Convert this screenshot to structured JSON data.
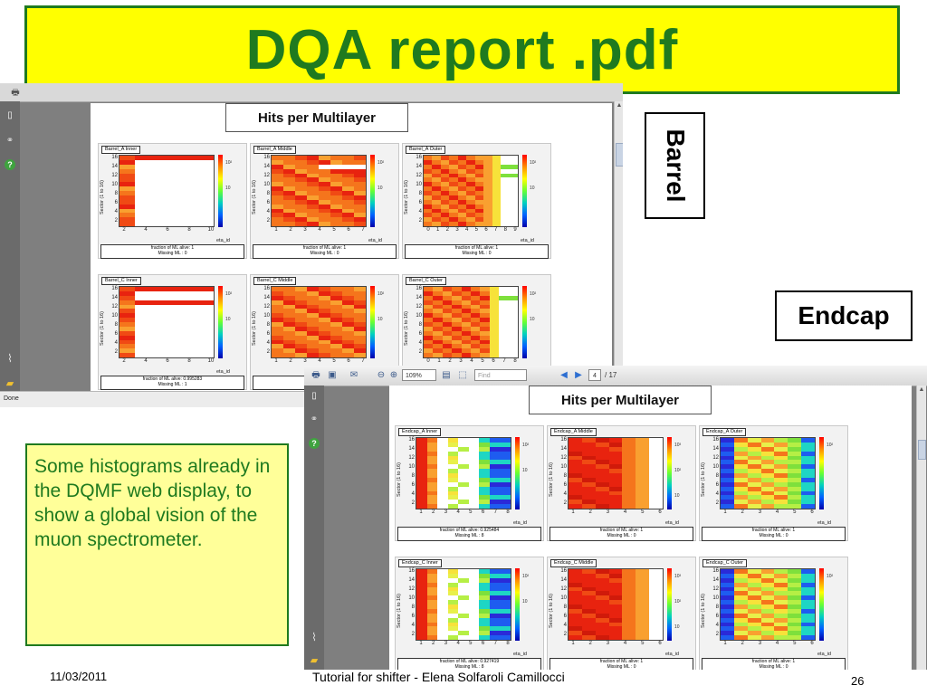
{
  "slide": {
    "title": "DQA report .pdf",
    "barrel_label": "Barrel",
    "endcap_label": "Endcap",
    "note": "Some histograms already in the DQMF web display,  to show a global vision of the muon spectrometer.",
    "footer": {
      "date": "11/03/2011",
      "center": "Tutorial for shifter - Elena Solfaroli Camillocci",
      "page": "26"
    }
  },
  "viewer1": {
    "heading": "Hits per Multilayer",
    "status": "Done",
    "side_icons": [
      "page-icon",
      "binoculars-icon",
      "help-icon",
      "paperclip-icon",
      "comment-icon"
    ],
    "panels": [
      {
        "name": "barrel-a-inner",
        "label": "Barrel_A Inner",
        "ylabel": "Sector (1 to 16)",
        "xlabel": "eta_id",
        "yticks": [
          "16",
          "14",
          "12",
          "10",
          "8",
          "6",
          "4",
          "2"
        ],
        "xticks": [
          "2",
          "4",
          "6",
          "8",
          "10"
        ],
        "colorbar": [
          "10²",
          "10"
        ],
        "stats": [
          "fraction of ML alive: 1",
          "Missing ML : 0"
        ]
      },
      {
        "name": "barrel-a-middle",
        "label": "Barrel_A Middle",
        "ylabel": "Sector (1 to 16)",
        "xlabel": "eta_id",
        "yticks": [
          "16",
          "14",
          "12",
          "10",
          "8",
          "6",
          "4",
          "2"
        ],
        "xticks": [
          "1",
          "2",
          "3",
          "4",
          "5",
          "6",
          "7"
        ],
        "colorbar": [
          "10²",
          "10"
        ],
        "stats": [
          "fraction of ML alive: 1",
          "Missing ML : 0"
        ]
      },
      {
        "name": "barrel-a-outer",
        "label": "Barrel_A Outer",
        "ylabel": "Sector (1 to 16)",
        "xlabel": "eta_id",
        "yticks": [
          "16",
          "14",
          "12",
          "10",
          "8",
          "6",
          "4",
          "2"
        ],
        "xticks": [
          "0",
          "1",
          "2",
          "3",
          "4",
          "5",
          "6",
          "7",
          "8",
          "9"
        ],
        "colorbar": [
          "10²",
          "10"
        ],
        "stats": [
          "fraction of ML alive: 1",
          "Missing ML : 0"
        ]
      },
      {
        "name": "barrel-c-inner",
        "label": "Barrel_C Inner",
        "ylabel": "Sector (1 to 16)",
        "xlabel": "eta_id",
        "yticks": [
          "16",
          "14",
          "12",
          "10",
          "8",
          "6",
          "4",
          "2"
        ],
        "xticks": [
          "2",
          "4",
          "6",
          "8",
          "10"
        ],
        "colorbar": [
          "10²",
          "10"
        ],
        "stats": [
          "fraction of ML alive: 0.995283",
          "Missing ML : 1"
        ]
      },
      {
        "name": "barrel-c-middle",
        "label": "Barrel_C Middle",
        "ylabel": "Sector (1 to 16)",
        "xlabel": "eta_id",
        "yticks": [
          "16",
          "14",
          "12",
          "10",
          "8",
          "6",
          "4",
          "2"
        ],
        "xticks": [
          "1",
          "2",
          "3",
          "4",
          "5",
          "6",
          "7"
        ],
        "colorbar": [
          "10²",
          "10"
        ],
        "stats": [
          "",
          ""
        ]
      },
      {
        "name": "barrel-c-outer",
        "label": "Barrel_C Outer",
        "ylabel": "Sector (1 to 16)",
        "xlabel": "eta_id",
        "yticks": [
          "16",
          "14",
          "12",
          "10",
          "8",
          "6",
          "4",
          "2"
        ],
        "xticks": [
          "0",
          "1",
          "2",
          "3",
          "4",
          "5",
          "6",
          "7",
          "8"
        ],
        "colorbar": [
          "10²",
          "10"
        ],
        "stats": [
          "",
          ""
        ]
      }
    ]
  },
  "viewer2": {
    "heading": "Hits per Multilayer",
    "toolbar": {
      "zoom": "109%",
      "find_placeholder": "Find",
      "page_current": "4",
      "page_total": "/ 17"
    },
    "side_icons": [
      "page-icon",
      "binoculars-icon",
      "help-icon",
      "paperclip-icon",
      "comment-icon"
    ],
    "panels": [
      {
        "name": "endcap-a-inner",
        "label": "Endcap_A Inner",
        "ylabel": "Sector (1 to 16)",
        "xlabel": "eta_id",
        "yticks": [
          "16",
          "14",
          "12",
          "10",
          "8",
          "6",
          "4",
          "2"
        ],
        "xticks": [
          "1",
          "2",
          "3",
          "4",
          "5",
          "6",
          "7",
          "8"
        ],
        "colorbar": [
          "10²",
          "10"
        ],
        "stats": [
          "fraction of ML alive: 0.925484",
          "Missing ML : 8"
        ]
      },
      {
        "name": "endcap-a-middle",
        "label": "Endcap_A Middle",
        "ylabel": "Sector (1 to 16)",
        "xlabel": "eta_id",
        "yticks": [
          "16",
          "14",
          "12",
          "10",
          "8",
          "6",
          "4",
          "2"
        ],
        "xticks": [
          "1",
          "2",
          "3",
          "4",
          "5",
          "6"
        ],
        "colorbar": [
          "10³",
          "10²",
          "10"
        ],
        "stats": [
          "fraction of ML alive: 1",
          "Missing ML : 0"
        ]
      },
      {
        "name": "endcap-a-outer",
        "label": "Endcap_A Outer",
        "ylabel": "Sector (1 to 16)",
        "xlabel": "eta_id",
        "yticks": [
          "16",
          "14",
          "12",
          "10",
          "8",
          "6",
          "4",
          "2"
        ],
        "xticks": [
          "1",
          "2",
          "3",
          "4",
          "5",
          "6"
        ],
        "colorbar": [
          "10²"
        ],
        "stats": [
          "fraction of ML alive: 1",
          "Missing ML : 0"
        ]
      },
      {
        "name": "endcap-c-inner",
        "label": "Endcap_C Inner",
        "ylabel": "Sector (1 to 16)",
        "xlabel": "eta_id",
        "yticks": [
          "16",
          "14",
          "12",
          "10",
          "8",
          "6",
          "4",
          "2"
        ],
        "xticks": [
          "1",
          "2",
          "3",
          "4",
          "5",
          "6",
          "7",
          "8"
        ],
        "colorbar": [
          "10²",
          "10"
        ],
        "stats": [
          "fraction of ML alive: 0.927419",
          "Missing ML : 8"
        ]
      },
      {
        "name": "endcap-c-middle",
        "label": "Endcap_C Middle",
        "ylabel": "Sector (1 to 16)",
        "xlabel": "eta_id",
        "yticks": [
          "16",
          "14",
          "12",
          "10",
          "8",
          "6",
          "4",
          "2"
        ],
        "xticks": [
          "1",
          "2",
          "3",
          "4",
          "5",
          "6"
        ],
        "colorbar": [
          "10³",
          "10²",
          "10"
        ],
        "stats": [
          "fraction of ML alive: 1",
          "Missing ML : 0"
        ]
      },
      {
        "name": "endcap-c-outer",
        "label": "Endcap_C Outer",
        "ylabel": "Sector (1 to 16)",
        "xlabel": "eta_id",
        "yticks": [
          "16",
          "14",
          "12",
          "10",
          "8",
          "6",
          "4",
          "2"
        ],
        "xticks": [
          "1",
          "2",
          "3",
          "4",
          "5",
          "6"
        ],
        "colorbar": [
          "10²"
        ],
        "stats": [
          "fraction of ML alive: 1",
          "Missing ML : 0"
        ]
      }
    ]
  },
  "colors": {
    "title_bg": "#ffff00",
    "title_text": "#1f7a1f",
    "note_bg": "#ffff99",
    "note_text": "#1f7a1f",
    "viewer_bg": "#7f7f7f"
  }
}
